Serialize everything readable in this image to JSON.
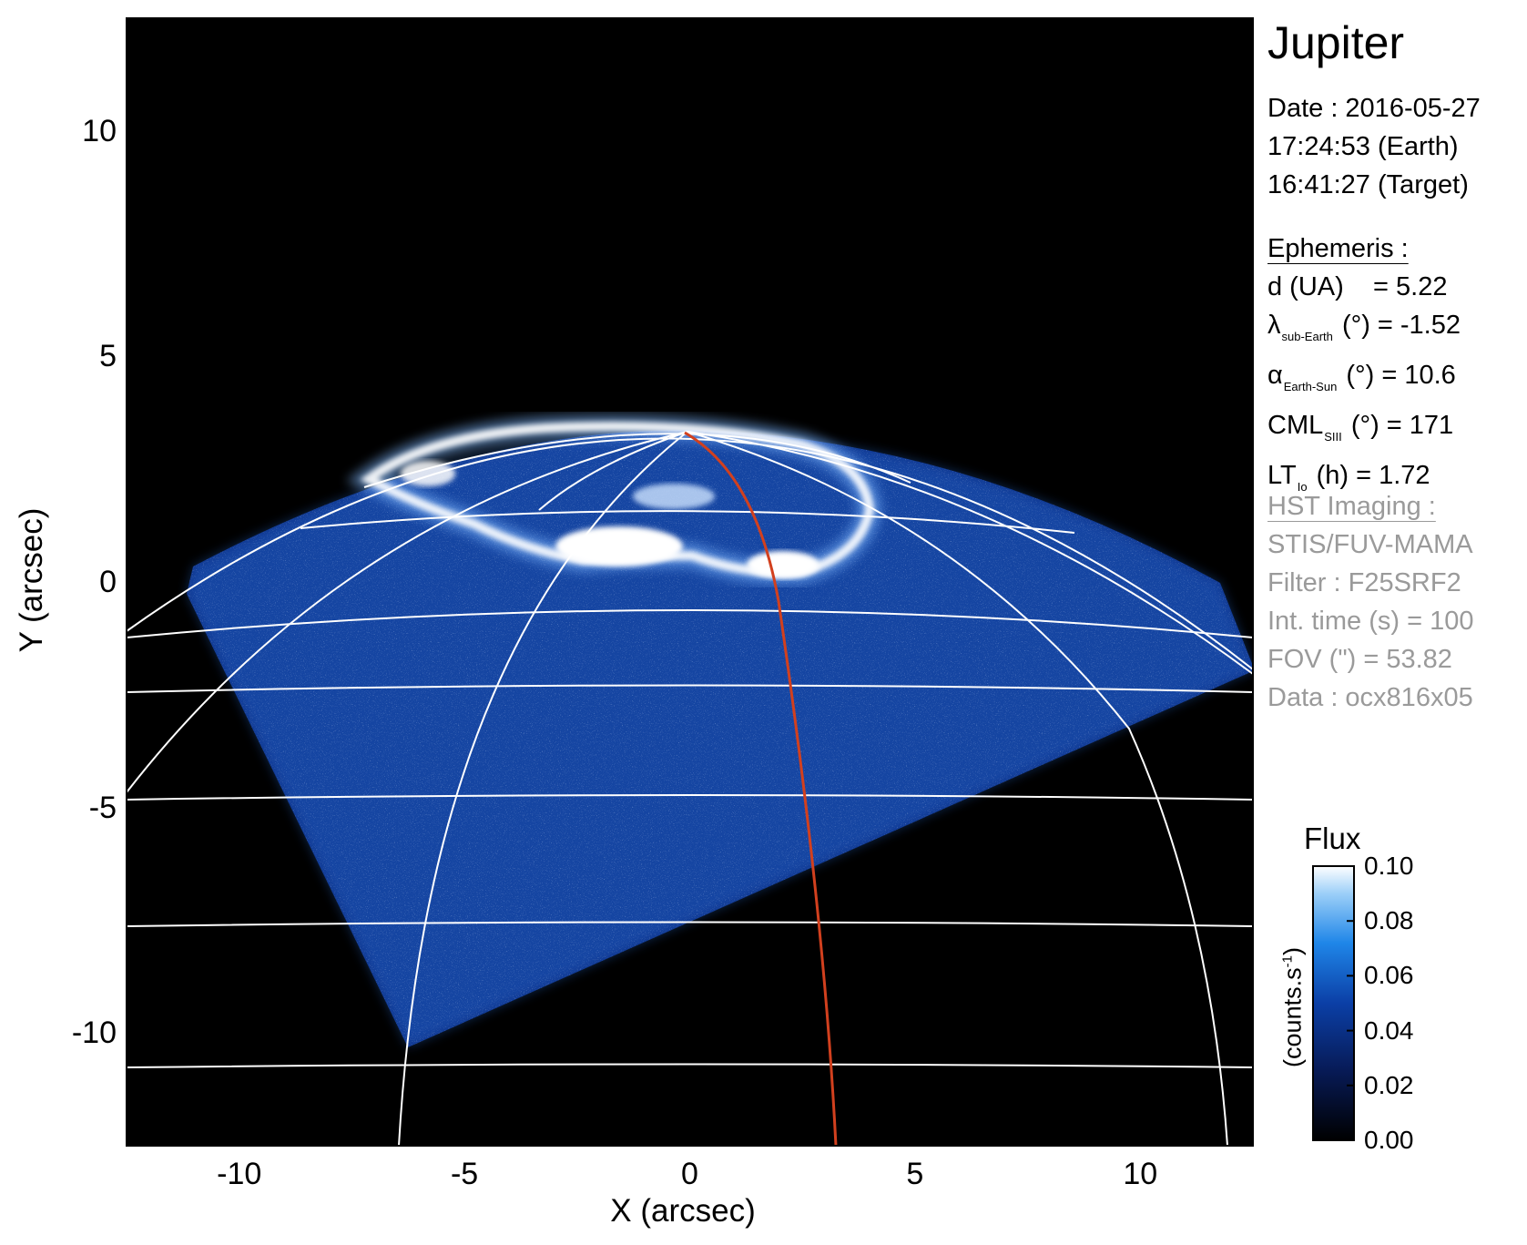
{
  "target": "Jupiter",
  "observation": {
    "date": "Date : 2016-05-27",
    "time_earth": "17:24:53 (Earth)",
    "time_target": "16:41:27 (Target)"
  },
  "ephemeris": {
    "heading": "Ephemeris :",
    "distance_label": "d (UA)",
    "distance_value": "= 5.22",
    "lat_symbol": "λ",
    "lat_sub": "sub-Earth",
    "lat_value": "(°) = -1.52",
    "phase_symbol": "α",
    "phase_sub": "Earth-Sun",
    "phase_value": "(°) = 10.6",
    "cml_symbol": "CML",
    "cml_sub": "SIII",
    "cml_value": "(°) = 171",
    "lt_symbol": "LT",
    "lt_sub": "Io",
    "lt_value": "(h) = 1.72"
  },
  "hst": {
    "heading": "HST Imaging :",
    "instrument": "STIS/FUV-MAMA",
    "filter": "Filter : F25SRF2",
    "int_time": "Int. time (s) = 100",
    "fov": "FOV (\") = 53.82",
    "data": "Data : ocx816x05"
  },
  "axes": {
    "xlabel": "X (arcsec)",
    "ylabel": "Y (arcsec)",
    "xlim": [
      -12.5,
      12.5
    ],
    "ylim": [
      -12.5,
      12.5
    ],
    "xticks": [
      "-10",
      "-5",
      "0",
      "5",
      "10"
    ],
    "yticks": [
      "10",
      "5",
      "0",
      "-5",
      "-10"
    ]
  },
  "colorbar": {
    "title": "Flux",
    "unit": "(counts.s",
    "unit_exp": "-1",
    "unit_close": ")",
    "ticks": [
      "0.10",
      "0.08",
      "0.06",
      "0.04",
      "0.02",
      "0.00"
    ],
    "range": [
      0.0,
      0.1
    ]
  },
  "colors": {
    "background": "#000000",
    "emission_low": "#0b2f86",
    "emission_mid": "#2a73e0",
    "emission_high": "#ffffff",
    "grid": "#ffffff",
    "meridian_highlight": "#d2401e"
  }
}
